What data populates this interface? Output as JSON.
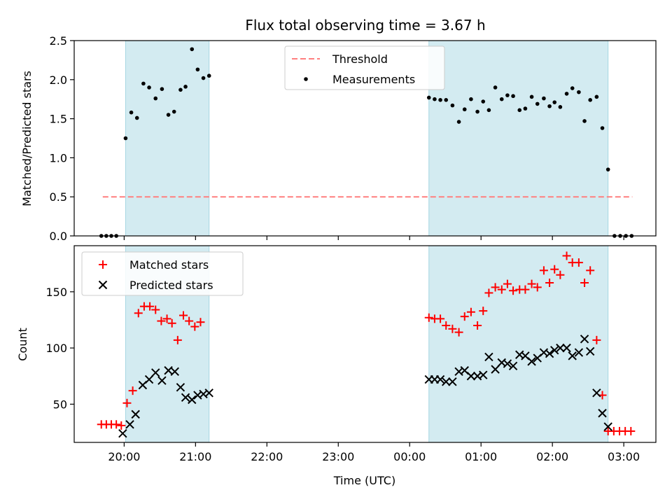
{
  "chart_data": {
    "title": "Flux total observing time = 3.67 h",
    "xlabel": "Time (UTC)",
    "x_unit": "hours relative to 00:00 UTC (negative = previous evening)",
    "x_range": [
      -4.7,
      3.45
    ],
    "x_ticks": [
      {
        "label": "20:00",
        "v": -4
      },
      {
        "label": "21:00",
        "v": -3
      },
      {
        "label": "22:00",
        "v": -2
      },
      {
        "label": "23:00",
        "v": -1
      },
      {
        "label": "00:00",
        "v": 0
      },
      {
        "label": "01:00",
        "v": 1
      },
      {
        "label": "02:00",
        "v": 2
      },
      {
        "label": "03:00",
        "v": 3
      }
    ],
    "shaded_spans": [
      [
        -3.98,
        -2.81
      ],
      [
        0.27,
        2.78
      ]
    ],
    "shade_color": "#d3ebf1",
    "panels": [
      {
        "type": "scatter",
        "ylabel": "Matched/Predicted stars",
        "ylim": [
          0,
          2.5
        ],
        "y_ticks": [
          0.0,
          0.5,
          1.0,
          1.5,
          2.0,
          2.5
        ],
        "legend": {
          "placement": "upper-center",
          "entries": [
            "Threshold",
            "Measurements"
          ]
        },
        "threshold": {
          "name": "Threshold",
          "value": 0.5,
          "x": [
            -4.3,
            3.12
          ],
          "color": "#ff7f7f"
        },
        "series": [
          {
            "name": "Measurements",
            "marker": "dot",
            "color": "#000000",
            "points": [
              [
                -4.32,
                0
              ],
              [
                -4.25,
                0
              ],
              [
                -4.18,
                0
              ],
              [
                -4.11,
                0
              ],
              [
                -3.98,
                1.25
              ],
              [
                -3.9,
                1.58
              ],
              [
                -3.82,
                1.51
              ],
              [
                -3.73,
                1.95
              ],
              [
                -3.65,
                1.9
              ],
              [
                -3.56,
                1.76
              ],
              [
                -3.47,
                1.88
              ],
              [
                -3.38,
                1.55
              ],
              [
                -3.3,
                1.59
              ],
              [
                -3.21,
                1.87
              ],
              [
                -3.14,
                1.91
              ],
              [
                -3.05,
                2.39
              ],
              [
                -2.97,
                2.13
              ],
              [
                -2.89,
                2.02
              ],
              [
                -2.81,
                2.05
              ],
              [
                0.27,
                1.77
              ],
              [
                0.35,
                1.75
              ],
              [
                0.43,
                1.74
              ],
              [
                0.51,
                1.74
              ],
              [
                0.6,
                1.67
              ],
              [
                0.69,
                1.46
              ],
              [
                0.77,
                1.62
              ],
              [
                0.86,
                1.75
              ],
              [
                0.95,
                1.59
              ],
              [
                1.03,
                1.72
              ],
              [
                1.11,
                1.61
              ],
              [
                1.2,
                1.9
              ],
              [
                1.29,
                1.75
              ],
              [
                1.37,
                1.8
              ],
              [
                1.45,
                1.79
              ],
              [
                1.54,
                1.61
              ],
              [
                1.62,
                1.63
              ],
              [
                1.71,
                1.78
              ],
              [
                1.79,
                1.69
              ],
              [
                1.88,
                1.76
              ],
              [
                1.96,
                1.66
              ],
              [
                2.03,
                1.71
              ],
              [
                2.11,
                1.65
              ],
              [
                2.2,
                1.82
              ],
              [
                2.28,
                1.89
              ],
              [
                2.37,
                1.84
              ],
              [
                2.45,
                1.47
              ],
              [
                2.53,
                1.74
              ],
              [
                2.62,
                1.78
              ],
              [
                2.7,
                1.38
              ],
              [
                2.78,
                0.85
              ],
              [
                2.87,
                0
              ],
              [
                2.95,
                0
              ],
              [
                3.03,
                0
              ],
              [
                3.11,
                0
              ]
            ]
          }
        ]
      },
      {
        "type": "scatter",
        "ylabel": "Count",
        "ylim": [
          16,
          191
        ],
        "y_ticks": [
          50,
          100,
          150
        ],
        "legend": {
          "placement": "upper-left",
          "entries": [
            "Matched stars",
            "Predicted stars"
          ]
        },
        "series": [
          {
            "name": "Matched stars",
            "marker": "plus",
            "color": "#ff0000",
            "points": [
              [
                -4.32,
                32
              ],
              [
                -4.25,
                32
              ],
              [
                -4.18,
                32
              ],
              [
                -4.11,
                32
              ],
              [
                -4.04,
                31
              ],
              [
                -3.96,
                51
              ],
              [
                -3.88,
                62
              ],
              [
                -3.8,
                131
              ],
              [
                -3.72,
                137
              ],
              [
                -3.64,
                137
              ],
              [
                -3.56,
                134
              ],
              [
                -3.48,
                124
              ],
              [
                -3.4,
                126
              ],
              [
                -3.33,
                122
              ],
              [
                -3.25,
                107
              ],
              [
                -3.17,
                129
              ],
              [
                -3.09,
                124
              ],
              [
                -3.01,
                119
              ],
              [
                -2.93,
                123
              ],
              [
                0.27,
                127
              ],
              [
                0.35,
                126
              ],
              [
                0.43,
                126
              ],
              [
                0.51,
                120
              ],
              [
                0.6,
                117
              ],
              [
                0.69,
                114
              ],
              [
                0.77,
                128
              ],
              [
                0.86,
                132
              ],
              [
                0.95,
                120
              ],
              [
                1.03,
                133
              ],
              [
                1.11,
                149
              ],
              [
                1.2,
                154
              ],
              [
                1.29,
                152
              ],
              [
                1.37,
                157
              ],
              [
                1.45,
                151
              ],
              [
                1.54,
                152
              ],
              [
                1.62,
                152
              ],
              [
                1.71,
                157
              ],
              [
                1.79,
                154
              ],
              [
                1.88,
                169
              ],
              [
                1.96,
                158
              ],
              [
                2.03,
                170
              ],
              [
                2.11,
                165
              ],
              [
                2.2,
                182
              ],
              [
                2.28,
                176
              ],
              [
                2.37,
                176
              ],
              [
                2.45,
                158
              ],
              [
                2.53,
                169
              ],
              [
                2.62,
                107
              ],
              [
                2.7,
                58
              ],
              [
                2.78,
                26
              ],
              [
                2.86,
                26
              ],
              [
                2.94,
                26
              ],
              [
                3.02,
                26
              ],
              [
                3.1,
                26
              ]
            ]
          },
          {
            "name": "Predicted stars",
            "marker": "x",
            "color": "#000000",
            "points": [
              [
                -4.02,
                24
              ],
              [
                -3.92,
                32
              ],
              [
                -3.84,
                41
              ],
              [
                -3.74,
                67
              ],
              [
                -3.65,
                72
              ],
              [
                -3.56,
                78
              ],
              [
                -3.47,
                71
              ],
              [
                -3.38,
                80
              ],
              [
                -3.29,
                79
              ],
              [
                -3.21,
                65
              ],
              [
                -3.14,
                56
              ],
              [
                -3.05,
                54
              ],
              [
                -2.97,
                58
              ],
              [
                -2.89,
                59
              ],
              [
                -2.81,
                60
              ],
              [
                0.27,
                72
              ],
              [
                0.35,
                72
              ],
              [
                0.43,
                72
              ],
              [
                0.51,
                70
              ],
              [
                0.6,
                70
              ],
              [
                0.69,
                79
              ],
              [
                0.77,
                80
              ],
              [
                0.86,
                75
              ],
              [
                0.95,
                75
              ],
              [
                1.03,
                76
              ],
              [
                1.11,
                92
              ],
              [
                1.2,
                81
              ],
              [
                1.29,
                87
              ],
              [
                1.37,
                86
              ],
              [
                1.45,
                84
              ],
              [
                1.54,
                94
              ],
              [
                1.62,
                93
              ],
              [
                1.71,
                88
              ],
              [
                1.79,
                91
              ],
              [
                1.88,
                96
              ],
              [
                1.96,
                95
              ],
              [
                2.03,
                98
              ],
              [
                2.11,
                100
              ],
              [
                2.2,
                100
              ],
              [
                2.28,
                93
              ],
              [
                2.37,
                96
              ],
              [
                2.45,
                108
              ],
              [
                2.53,
                97
              ],
              [
                2.62,
                60
              ],
              [
                2.7,
                42
              ],
              [
                2.78,
                30
              ]
            ]
          }
        ]
      }
    ]
  }
}
